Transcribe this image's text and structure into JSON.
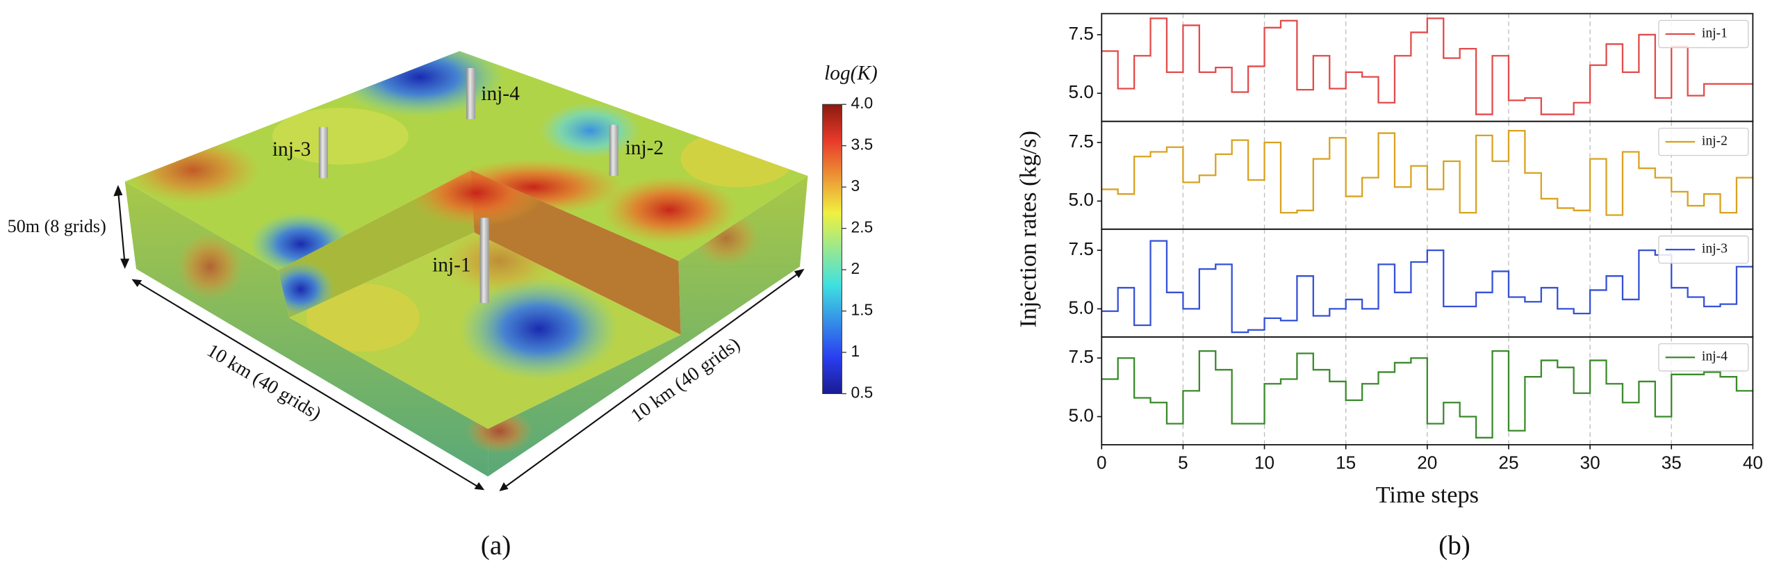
{
  "panel_a": {
    "wells": [
      "inj-1",
      "inj-2",
      "inj-3",
      "inj-4"
    ],
    "thickness_label": "50m (8 grids)",
    "length_label": "10 km (40 grids)",
    "width_label": "10 km (40 grids)",
    "colorbar": {
      "title": "log(K)",
      "lim": [
        0.5,
        4.0
      ],
      "ticks": [
        0.5,
        1.0,
        1.5,
        2.0,
        2.5,
        3.0,
        3.5,
        {
          "value": 4,
          "label": "4.0"
        }
      ]
    },
    "caption": "(a)"
  },
  "panel_b": {
    "ylabel": "Injection rates (kg/s)",
    "caption": "(b)"
  },
  "chart_data": [
    {
      "type": "step",
      "x": [
        0,
        1,
        2,
        3,
        4,
        5,
        6,
        7,
        8,
        9,
        10,
        11,
        12,
        13,
        14,
        15,
        16,
        17,
        18,
        19,
        20,
        21,
        22,
        23,
        24,
        25,
        26,
        27,
        28,
        29,
        30,
        31,
        32,
        33,
        34,
        35,
        36,
        37,
        38,
        39
      ],
      "series": [
        {
          "name": "inj-1",
          "color": "#e34a4a",
          "values": [
            6.8,
            5.2,
            6.6,
            8.2,
            5.9,
            7.9,
            5.9,
            6.1,
            5.05,
            6.15,
            7.8,
            8.1,
            5.15,
            6.6,
            5.2,
            5.9,
            5.7,
            4.6,
            6.6,
            7.6,
            8.2,
            6.5,
            6.9,
            4.1,
            6.6,
            4.7,
            4.8,
            4.1,
            4.1,
            4.6,
            6.2,
            7.1,
            5.9,
            7.5,
            4.8,
            7.0,
            4.9,
            5.4,
            5.4,
            5.4
          ]
        }
      ],
      "xlim": [
        0,
        40
      ],
      "xticks": [
        0,
        5,
        10,
        15,
        20,
        25,
        30,
        35,
        40
      ],
      "ylim": [
        3.8,
        8.4
      ],
      "yticks": [
        {
          "value": 5,
          "label": "5.0"
        },
        7.5
      ],
      "grid": true,
      "legend": "upper right"
    },
    {
      "type": "step",
      "x": [
        0,
        1,
        2,
        3,
        4,
        5,
        6,
        7,
        8,
        9,
        10,
        11,
        12,
        13,
        14,
        15,
        16,
        17,
        18,
        19,
        20,
        21,
        22,
        23,
        24,
        25,
        26,
        27,
        28,
        29,
        30,
        31,
        32,
        33,
        34,
        35,
        36,
        37,
        38,
        39
      ],
      "series": [
        {
          "name": "inj-2",
          "color": "#d9a21f",
          "values": [
            5.5,
            5.3,
            6.9,
            7.1,
            7.3,
            5.8,
            6.1,
            7.0,
            7.6,
            5.9,
            7.5,
            4.5,
            4.6,
            6.8,
            7.7,
            5.2,
            6.0,
            7.9,
            5.6,
            6.5,
            5.5,
            6.7,
            4.5,
            7.8,
            6.7,
            8.0,
            6.2,
            5.1,
            4.7,
            4.6,
            6.8,
            4.4,
            7.1,
            6.4,
            6.0,
            5.4,
            4.8,
            5.3,
            4.5,
            6.0
          ]
        }
      ],
      "xlim": [
        0,
        40
      ],
      "xticks": [
        0,
        5,
        10,
        15,
        20,
        25,
        30,
        35,
        40
      ],
      "ylim": [
        3.8,
        8.4
      ],
      "yticks": [
        {
          "value": 5,
          "label": "5.0"
        },
        7.5
      ],
      "grid": true,
      "legend": "upper right"
    },
    {
      "type": "step",
      "x": [
        0,
        1,
        2,
        3,
        4,
        5,
        6,
        7,
        8,
        9,
        10,
        11,
        12,
        13,
        14,
        15,
        16,
        17,
        18,
        19,
        20,
        21,
        22,
        23,
        24,
        25,
        26,
        27,
        28,
        29,
        30,
        31,
        32,
        33,
        34,
        35,
        36,
        37,
        38,
        39
      ],
      "series": [
        {
          "name": "inj-3",
          "color": "#3550d6",
          "values": [
            4.9,
            5.9,
            4.3,
            7.9,
            5.7,
            5.0,
            6.7,
            6.9,
            4.0,
            4.1,
            4.6,
            4.5,
            6.4,
            4.7,
            5.0,
            5.4,
            5.0,
            6.9,
            5.7,
            7.0,
            7.5,
            5.1,
            5.1,
            5.7,
            6.6,
            5.5,
            5.3,
            5.9,
            5.0,
            4.8,
            5.8,
            6.4,
            5.4,
            7.5,
            7.3,
            5.9,
            5.5,
            5.1,
            5.2,
            6.8
          ]
        }
      ],
      "xlim": [
        0,
        40
      ],
      "xticks": [
        0,
        5,
        10,
        15,
        20,
        25,
        30,
        35,
        40
      ],
      "ylim": [
        3.8,
        8.4
      ],
      "yticks": [
        {
          "value": 5,
          "label": "5.0"
        },
        7.5
      ],
      "grid": true,
      "legend": "upper right"
    },
    {
      "type": "step",
      "x": [
        0,
        1,
        2,
        3,
        4,
        5,
        6,
        7,
        8,
        9,
        10,
        11,
        12,
        13,
        14,
        15,
        16,
        17,
        18,
        19,
        20,
        21,
        22,
        23,
        24,
        25,
        26,
        27,
        28,
        29,
        30,
        31,
        32,
        33,
        34,
        35,
        36,
        37,
        38,
        39
      ],
      "series": [
        {
          "name": "inj-4",
          "color": "#3a8a2a",
          "values": [
            6.6,
            7.5,
            5.8,
            5.6,
            4.7,
            6.1,
            7.8,
            7.0,
            4.7,
            4.7,
            6.4,
            6.6,
            7.7,
            7.0,
            6.5,
            5.7,
            6.4,
            6.9,
            7.3,
            7.5,
            4.7,
            5.6,
            5.0,
            4.1,
            7.8,
            4.4,
            6.7,
            7.4,
            7.1,
            6.0,
            7.4,
            6.4,
            5.6,
            6.5,
            5.0,
            6.8,
            6.8,
            6.9,
            6.7,
            6.1
          ]
        }
      ],
      "xlim": [
        0,
        40
      ],
      "xticks": [
        0,
        5,
        10,
        15,
        20,
        25,
        30,
        35,
        40
      ],
      "ylim": [
        3.8,
        8.4
      ],
      "yticks": [
        {
          "value": 5,
          "label": "5.0"
        },
        7.5
      ],
      "grid": true,
      "legend": "upper right",
      "xlabel": "Time steps"
    }
  ]
}
